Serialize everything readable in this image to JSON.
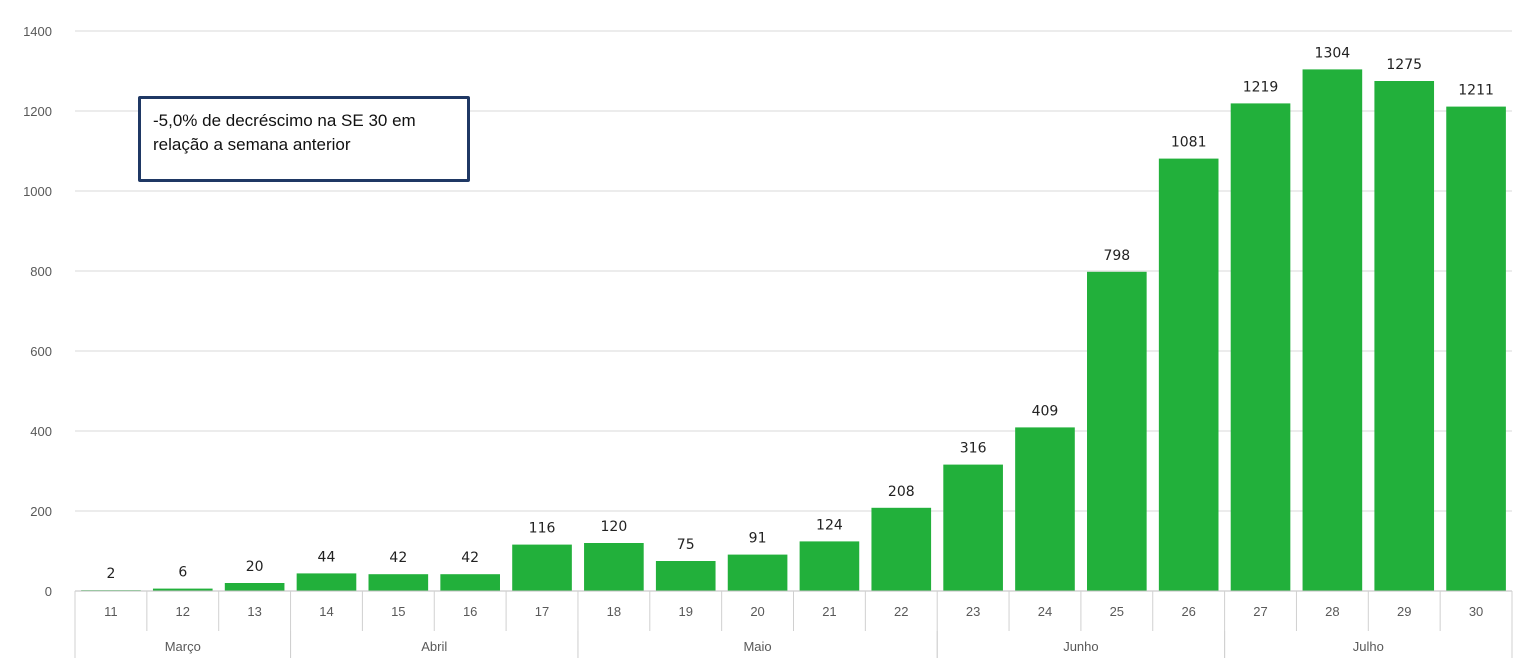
{
  "chart_data": {
    "type": "bar",
    "categories": [
      "11",
      "12",
      "13",
      "14",
      "15",
      "16",
      "17",
      "18",
      "19",
      "20",
      "21",
      "22",
      "23",
      "24",
      "25",
      "26",
      "27",
      "28",
      "29",
      "30"
    ],
    "values": [
      2,
      6,
      20,
      44,
      42,
      42,
      116,
      120,
      75,
      91,
      124,
      208,
      316,
      409,
      798,
      1081,
      1219,
      1304,
      1275,
      1211
    ],
    "months": [
      {
        "label": "Março",
        "from": 0,
        "to": 2
      },
      {
        "label": "Abril",
        "from": 3,
        "to": 6
      },
      {
        "label": "Maio",
        "from": 7,
        "to": 11
      },
      {
        "label": "Junho",
        "from": 12,
        "to": 15
      },
      {
        "label": "Julho",
        "from": 16,
        "to": 19
      }
    ],
    "ylim": [
      0,
      1400
    ],
    "yticks": [
      0,
      200,
      400,
      600,
      800,
      1000,
      1200,
      1400
    ],
    "grid": true,
    "bar_color": "#22b03b",
    "annotation": "-5,0% de decréscimo na SE 30 em relação a semana anterior"
  }
}
